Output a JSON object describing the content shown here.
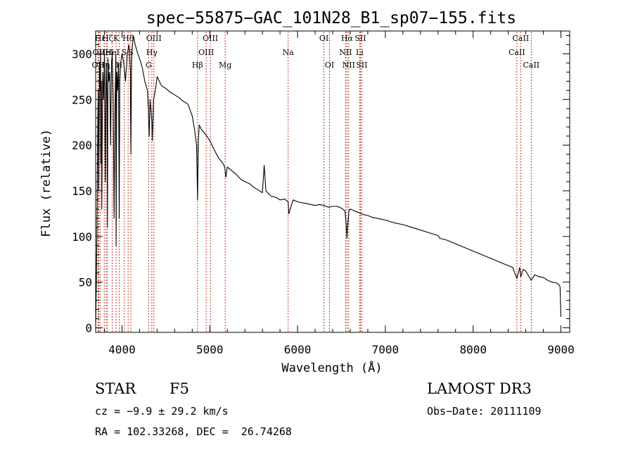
{
  "chart_data": {
    "type": "line",
    "title": "spec−55875−GAC_101N28_B1_sp07−155.fits",
    "xlabel": "Wavelength (Å)",
    "ylabel": "Flux (relative)",
    "xlim": [
      3700,
      9100
    ],
    "ylim": [
      -5,
      325
    ],
    "x_ticks": [
      4000,
      5000,
      6000,
      7000,
      8000,
      9000
    ],
    "x_tick_labels": [
      "4000",
      "5000",
      "6000",
      "7000",
      "8000",
      "9000"
    ],
    "y_ticks": [
      0,
      50,
      100,
      150,
      200,
      250,
      300
    ],
    "y_tick_labels": [
      "0",
      "50",
      "100",
      "150",
      "200",
      "250",
      "300"
    ],
    "series": [
      {
        "name": "spectrum",
        "x": [
          3700,
          3705,
          3710,
          3715,
          3720,
          3725,
          3730,
          3735,
          3740,
          3745,
          3750,
          3755,
          3760,
          3765,
          3770,
          3780,
          3790,
          3800,
          3810,
          3820,
          3830,
          3835,
          3840,
          3850,
          3860,
          3870,
          3880,
          3889,
          3900,
          3910,
          3920,
          3930,
          3933,
          3940,
          3950,
          3960,
          3968,
          3975,
          3985,
          4000,
          4020,
          4040,
          4060,
          4080,
          4095,
          4101,
          4110,
          4130,
          4150,
          4180,
          4200,
          4230,
          4260,
          4290,
          4300,
          4310,
          4320,
          4340,
          4345,
          4360,
          4380,
          4400,
          4450,
          4500,
          4550,
          4600,
          4650,
          4700,
          4750,
          4800,
          4830,
          4850,
          4861,
          4870,
          4880,
          4900,
          4950,
          5000,
          5050,
          5100,
          5150,
          5170,
          5183,
          5200,
          5250,
          5300,
          5350,
          5400,
          5450,
          5500,
          5550,
          5600,
          5620,
          5640,
          5700,
          5750,
          5800,
          5850,
          5893,
          5900,
          5950,
          6000,
          6050,
          6100,
          6150,
          6200,
          6250,
          6300,
          6350,
          6400,
          6450,
          6500,
          6540,
          6555,
          6563,
          6570,
          6585,
          6600,
          6650,
          6700,
          6750,
          6800,
          6850,
          6900,
          6950,
          7000,
          7100,
          7200,
          7300,
          7400,
          7500,
          7600,
          7620,
          7700,
          7800,
          7900,
          8000,
          8100,
          8200,
          8300,
          8400,
          8450,
          8498,
          8530,
          8542,
          8570,
          8600,
          8662,
          8700,
          8750,
          8800,
          8850,
          8900,
          8950,
          8980,
          8990,
          9000
        ],
        "y": [
          2,
          30,
          60,
          110,
          180,
          230,
          260,
          150,
          230,
          290,
          260,
          300,
          180,
          270,
          130,
          280,
          250,
          300,
          160,
          290,
          250,
          110,
          295,
          270,
          280,
          200,
          290,
          300,
          250,
          120,
          240,
          300,
          90,
          280,
          260,
          290,
          120,
          270,
          290,
          300,
          290,
          270,
          300,
          310,
          280,
          190,
          300,
          320,
          310,
          300,
          295,
          285,
          270,
          260,
          240,
          210,
          250,
          225,
          205,
          250,
          260,
          275,
          265,
          262,
          258,
          255,
          252,
          248,
          245,
          232,
          215,
          200,
          140,
          205,
          222,
          218,
          212,
          205,
          195,
          186,
          180,
          176,
          165,
          176,
          172,
          168,
          163,
          160,
          158,
          154,
          151,
          148,
          178,
          150,
          144,
          143,
          140,
          141,
          138,
          125,
          140,
          138,
          137,
          136,
          135,
          134,
          135,
          134,
          132,
          133,
          133,
          131,
          128,
          112,
          98,
          110,
          128,
          130,
          128,
          126,
          124,
          123,
          121,
          120,
          119,
          118,
          115,
          113,
          110,
          107,
          104,
          101,
          98,
          96,
          92,
          88,
          84,
          80,
          76,
          72,
          68,
          66,
          54,
          66,
          56,
          64,
          62,
          52,
          58,
          56,
          55,
          52,
          50,
          49,
          47,
          45,
          12
        ]
      }
    ],
    "emission_lines": [
      {
        "wavelength": 3727,
        "label": "OII",
        "row": 2
      },
      {
        "wavelength": 3735,
        "label": "OII",
        "row": 1
      },
      {
        "wavelength": 3751,
        "label": "Hε",
        "row": 0
      },
      {
        "wavelength": 3798,
        "label": "Hη",
        "row": 2
      },
      {
        "wavelength": 3820,
        "label": "HeI",
        "row": 1
      },
      {
        "wavelength": 3835,
        "label": "Hζ",
        "row": 0
      },
      {
        "wavelength": 3889,
        "label": "HeI",
        "row": 1
      },
      {
        "wavelength": 3933,
        "label": "K",
        "row": 0
      },
      {
        "wavelength": 3968,
        "label": "H",
        "row": 2
      },
      {
        "wavelength": 4026,
        "label": "S",
        "row": 1
      },
      {
        "wavelength": 4070,
        "label": "Hδ",
        "row": 0
      },
      {
        "wavelength": 4101,
        "label": "S",
        "row": 1
      },
      {
        "wavelength": 4304,
        "label": "G",
        "row": 2
      },
      {
        "wavelength": 4340,
        "label": "Hγ",
        "row": 1
      },
      {
        "wavelength": 4363,
        "label": "OIII",
        "row": 0
      },
      {
        "wavelength": 4861,
        "label": "Hβ",
        "row": 2
      },
      {
        "wavelength": 4959,
        "label": "OIII",
        "row": 1
      },
      {
        "wavelength": 5007,
        "label": "OIII",
        "row": 0
      },
      {
        "wavelength": 5175,
        "label": "Mg",
        "row": 2
      },
      {
        "wavelength": 5893,
        "label": "Na",
        "row": 1
      },
      {
        "wavelength": 6300,
        "label": "OI",
        "row": 0
      },
      {
        "wavelength": 6364,
        "label": "OI",
        "row": 2
      },
      {
        "wavelength": 6548,
        "label": "NII",
        "row": 1
      },
      {
        "wavelength": 6563,
        "label": "Hα",
        "row": 0
      },
      {
        "wavelength": 6583,
        "label": "NII",
        "row": 2
      },
      {
        "wavelength": 6707,
        "label": "Li",
        "row": 1
      },
      {
        "wavelength": 6716,
        "label": "SII",
        "row": 0
      },
      {
        "wavelength": 6731,
        "label": "SII",
        "row": 2
      },
      {
        "wavelength": 8498,
        "label": "CaII",
        "row": 1
      },
      {
        "wavelength": 8542,
        "label": "CaII",
        "row": 0
      },
      {
        "wavelength": 8662,
        "label": "CaII",
        "row": 2
      }
    ],
    "colors": {
      "spectrum": "#000000",
      "lines": "#c0392b",
      "axes": "#000000"
    }
  },
  "info": {
    "object_type": "STAR",
    "subclass": "F5",
    "survey": "LAMOST DR3",
    "redshift_text": "cz = −9.9 ± 29.2 km/s",
    "coords_text": "RA = 102.33268, DEC =  26.74268",
    "obs_date_text": "Obs−Date: 20111109"
  }
}
